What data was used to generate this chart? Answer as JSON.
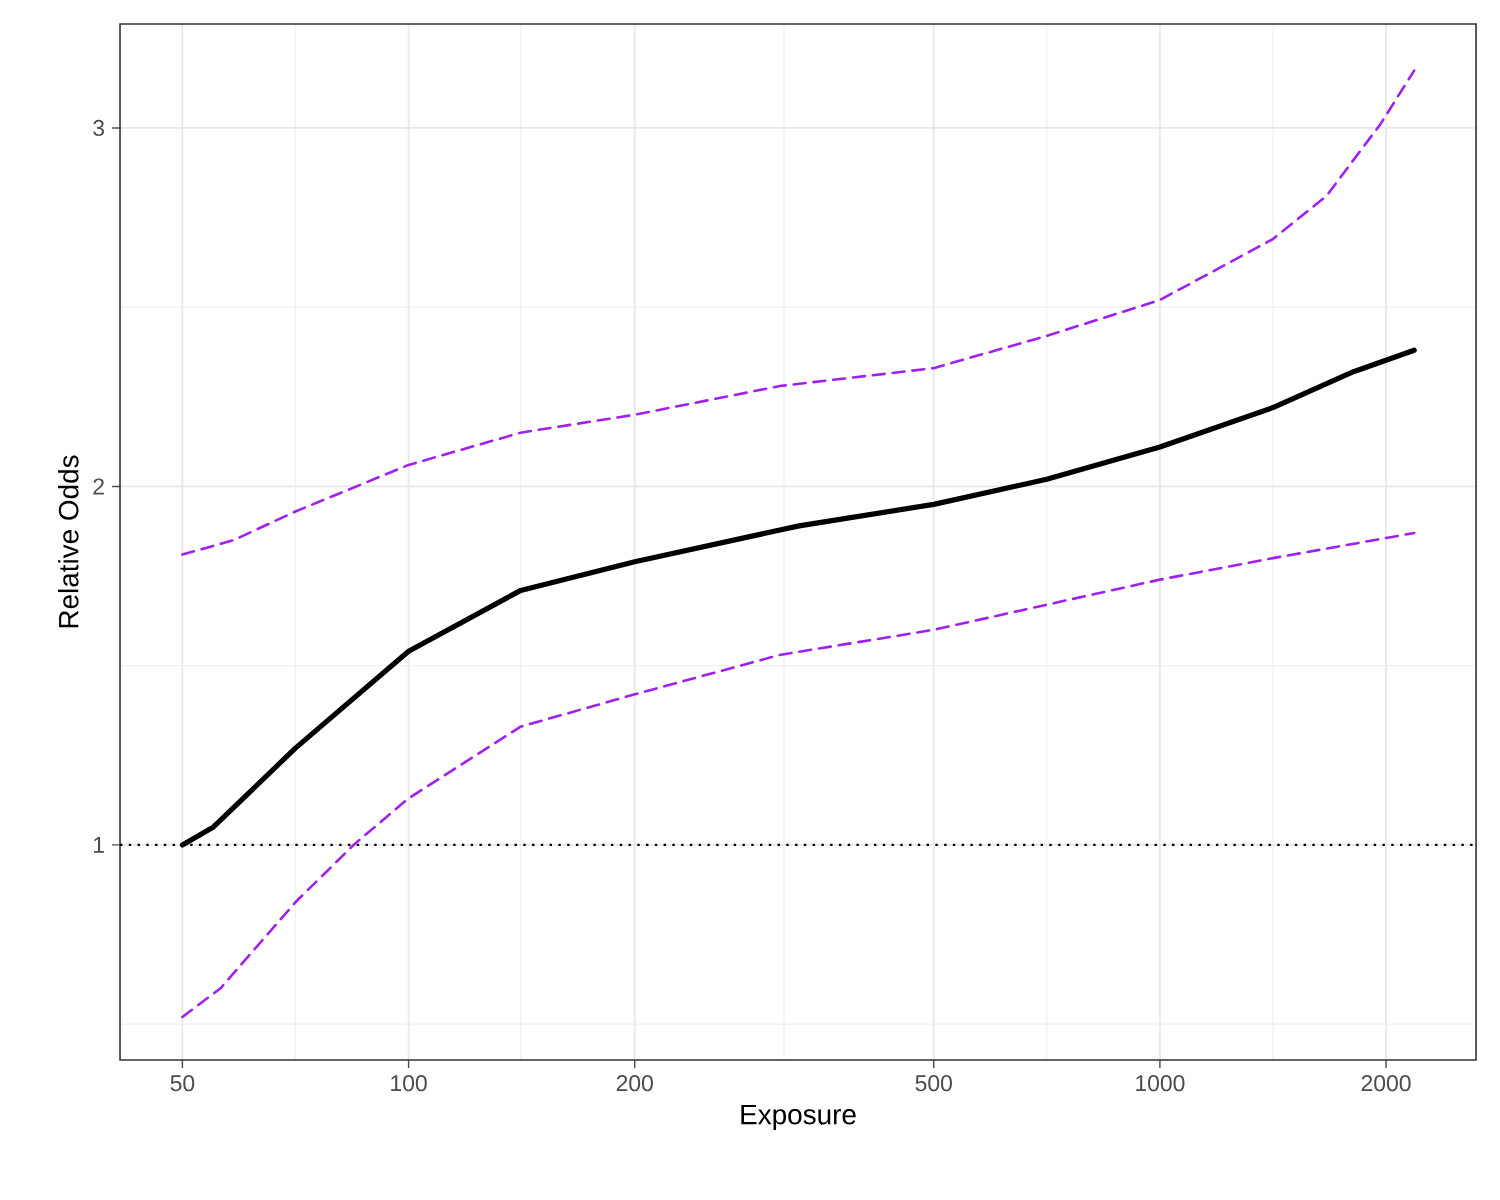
{
  "chart_data": {
    "type": "line",
    "xlabel": "Exposure",
    "ylabel": "Relative Odds",
    "log": "x",
    "grid": true,
    "xlim": [
      41.3,
      2635
    ],
    "ylim": [
      0.4,
      3.29
    ],
    "xticks": [
      50,
      {
        "value": 70.7,
        "label": null
      },
      100,
      {
        "value": 141,
        "label": null
      },
      200,
      {
        "value": 316,
        "label": null
      },
      500,
      {
        "value": 707,
        "label": null
      },
      1000,
      {
        "value": 1414,
        "label": null
      },
      2000
    ],
    "yticks": [
      {
        "value": 0.5,
        "label": null
      },
      1,
      {
        "value": 1.5,
        "label": null
      },
      2,
      {
        "value": 2.5,
        "label": null
      },
      3
    ],
    "ref_lines": [
      {
        "axis": "y",
        "value": 1,
        "color": "#000000",
        "line_style": "dotted"
      }
    ],
    "series": [
      {
        "color": "#000000",
        "line_style": "solid",
        "x": [
          50,
          55,
          70.7,
          100,
          141,
          200,
          331,
          500,
          707,
          1000,
          1414,
          1810,
          2180
        ],
        "values": [
          1.0,
          1.05,
          1.27,
          1.54,
          1.71,
          1.79,
          1.89,
          1.95,
          2.02,
          2.11,
          2.22,
          2.32,
          2.38
        ]
      },
      {
        "color": "#a020f0",
        "line_style": "dashed",
        "x": [
          50,
          58.5,
          70.7,
          100,
          141,
          200,
          312,
          500,
          707,
          1000,
          1414,
          1666,
          1965,
          2180
        ],
        "values": [
          1.81,
          1.85,
          1.93,
          2.06,
          2.15,
          2.2,
          2.28,
          2.33,
          2.42,
          2.52,
          2.69,
          2.81,
          3.01,
          3.16
        ]
      },
      {
        "color": "#a020f0",
        "line_style": "dashed",
        "x": [
          50,
          56.2,
          70.7,
          84.5,
          100,
          141,
          200,
          312,
          500,
          707,
          1000,
          1414,
          2180
        ],
        "values": [
          0.52,
          0.6,
          0.84,
          1.0,
          1.13,
          1.33,
          1.42,
          1.53,
          1.6,
          1.67,
          1.74,
          1.8,
          1.87
        ]
      }
    ]
  }
}
